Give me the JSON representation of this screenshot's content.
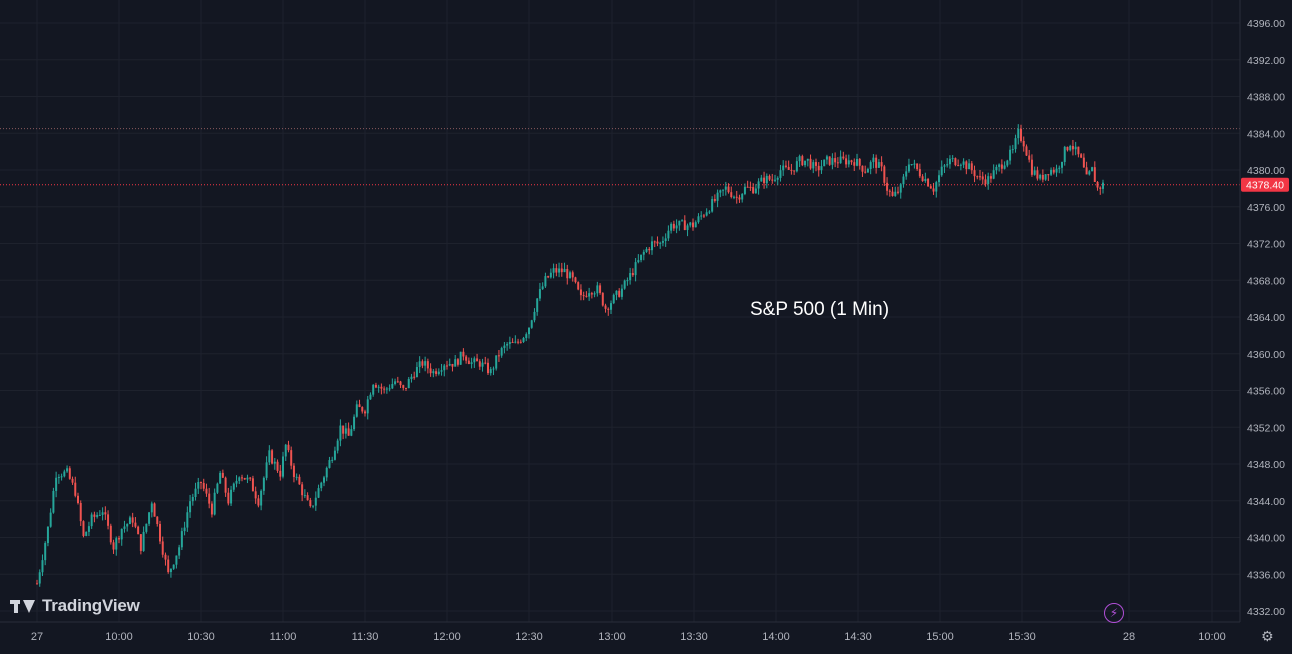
{
  "chart_data": {
    "type": "candlestick",
    "title": "",
    "annotation": "S&P 500 (1 Min)",
    "x_ticks": [
      "27",
      "10:00",
      "10:30",
      "11:00",
      "11:30",
      "12:00",
      "12:30",
      "13:00",
      "13:30",
      "14:00",
      "14:30",
      "15:00",
      "15:30",
      "28",
      "10:00"
    ],
    "y_ticks": [
      "4396.00",
      "4392.00",
      "4388.00",
      "4384.00",
      "4380.00",
      "4376.00",
      "4372.00",
      "4368.00",
      "4364.00",
      "4360.00",
      "4356.00",
      "4352.00",
      "4348.00",
      "4344.00",
      "4340.00",
      "4336.00",
      "4332.00"
    ],
    "ylim": [
      4331,
      4397
    ],
    "grid": true,
    "last_price": "4378.40",
    "session_high_line": 4384.5,
    "colors": {
      "up": "#26a69a",
      "down": "#ef5350",
      "background": "#131722",
      "grid": "#1e222d",
      "price_label": "#f23645"
    },
    "series": [
      {
        "name": "",
        "path": [
          [
            "09:30",
            4335
          ],
          [
            "09:34",
            4341
          ],
          [
            "09:37",
            4347
          ],
          [
            "09:41",
            4347
          ],
          [
            "09:44",
            4345
          ],
          [
            "09:47",
            4340
          ],
          [
            "09:50",
            4342
          ],
          [
            "09:54",
            4343
          ],
          [
            "09:58",
            4339
          ],
          [
            "10:01",
            4341
          ],
          [
            "10:05",
            4342
          ],
          [
            "10:08",
            4339
          ],
          [
            "10:12",
            4344
          ],
          [
            "10:15",
            4340
          ],
          [
            "10:18",
            4336
          ],
          [
            "10:22",
            4339
          ],
          [
            "10:26",
            4344
          ],
          [
            "10:30",
            4346
          ],
          [
            "10:34",
            4343
          ],
          [
            "10:37",
            4347
          ],
          [
            "10:40",
            4344
          ],
          [
            "10:44",
            4347
          ],
          [
            "10:48",
            4346
          ],
          [
            "10:51",
            4344
          ],
          [
            "10:55",
            4349
          ],
          [
            "10:59",
            4347
          ],
          [
            "11:01",
            4350
          ],
          [
            "11:04",
            4347
          ],
          [
            "11:07",
            4345
          ],
          [
            "11:10",
            4343
          ],
          [
            "11:14",
            4346
          ],
          [
            "11:18",
            4349
          ],
          [
            "11:21",
            4352
          ],
          [
            "11:24",
            4351
          ],
          [
            "11:27",
            4354
          ],
          [
            "11:30",
            4354
          ],
          [
            "11:33",
            4357
          ],
          [
            "11:37",
            4356
          ],
          [
            "11:41",
            4357
          ],
          [
            "11:44",
            4356
          ],
          [
            "11:48",
            4358
          ],
          [
            "11:51",
            4359
          ],
          [
            "11:55",
            4358
          ],
          [
            "11:59",
            4359
          ],
          [
            "12:03",
            4359
          ],
          [
            "12:06",
            4360
          ],
          [
            "12:09",
            4359
          ],
          [
            "12:12",
            4359
          ],
          [
            "12:16",
            4358
          ],
          [
            "12:19",
            4360
          ],
          [
            "12:22",
            4361
          ],
          [
            "12:25",
            4361
          ],
          [
            "12:28",
            4362
          ],
          [
            "12:30",
            4363
          ],
          [
            "12:33",
            4366
          ],
          [
            "12:36",
            4368
          ],
          [
            "12:39",
            4369
          ],
          [
            "12:43",
            4369
          ],
          [
            "12:46",
            4368
          ],
          [
            "12:49",
            4366
          ],
          [
            "12:52",
            4367
          ],
          [
            "12:55",
            4367
          ],
          [
            "12:58",
            4365
          ],
          [
            "13:01",
            4366
          ],
          [
            "13:04",
            4367
          ],
          [
            "13:08",
            4369
          ],
          [
            "13:12",
            4371
          ],
          [
            "13:15",
            4372
          ],
          [
            "13:18",
            4372
          ],
          [
            "13:22",
            4374
          ],
          [
            "13:26",
            4374
          ],
          [
            "13:30",
            4374
          ],
          [
            "13:33",
            4375
          ],
          [
            "13:36",
            4376
          ],
          [
            "13:39",
            4377
          ],
          [
            "13:42",
            4378
          ],
          [
            "13:46",
            4377
          ],
          [
            "13:49",
            4378
          ],
          [
            "13:52",
            4378
          ],
          [
            "13:56",
            4379
          ],
          [
            "13:59",
            4379
          ],
          [
            "14:02",
            4380
          ],
          [
            "14:06",
            4380
          ],
          [
            "14:09",
            4381
          ],
          [
            "14:12",
            4381
          ],
          [
            "14:15",
            4380
          ],
          [
            "14:19",
            4381
          ],
          [
            "14:22",
            4381
          ],
          [
            "14:26",
            4381
          ],
          [
            "14:29",
            4381
          ],
          [
            "14:33",
            4380
          ],
          [
            "14:36",
            4381
          ],
          [
            "14:39",
            4380
          ],
          [
            "14:41",
            4378
          ],
          [
            "14:43",
            4377
          ],
          [
            "14:46",
            4378
          ],
          [
            "14:49",
            4381
          ],
          [
            "14:52",
            4380
          ],
          [
            "14:55",
            4379
          ],
          [
            "14:58",
            4378
          ],
          [
            "15:01",
            4380
          ],
          [
            "15:04",
            4381
          ],
          [
            "15:08",
            4381
          ],
          [
            "15:12",
            4380
          ],
          [
            "15:15",
            4379
          ],
          [
            "15:18",
            4379
          ],
          [
            "15:21",
            4380
          ],
          [
            "15:24",
            4381
          ],
          [
            "15:27",
            4382
          ],
          [
            "15:29",
            4384
          ],
          [
            "15:31",
            4383
          ],
          [
            "15:34",
            4380
          ],
          [
            "15:37",
            4379
          ],
          [
            "15:40",
            4380
          ],
          [
            "15:43",
            4380
          ],
          [
            "15:46",
            4382
          ],
          [
            "15:48",
            4383
          ],
          [
            "15:50",
            4382
          ],
          [
            "15:52",
            4381
          ],
          [
            "15:54",
            4379
          ],
          [
            "15:56",
            4380
          ],
          [
            "15:58",
            4378
          ],
          [
            "16:00",
            4378.4
          ]
        ]
      }
    ]
  }
}
